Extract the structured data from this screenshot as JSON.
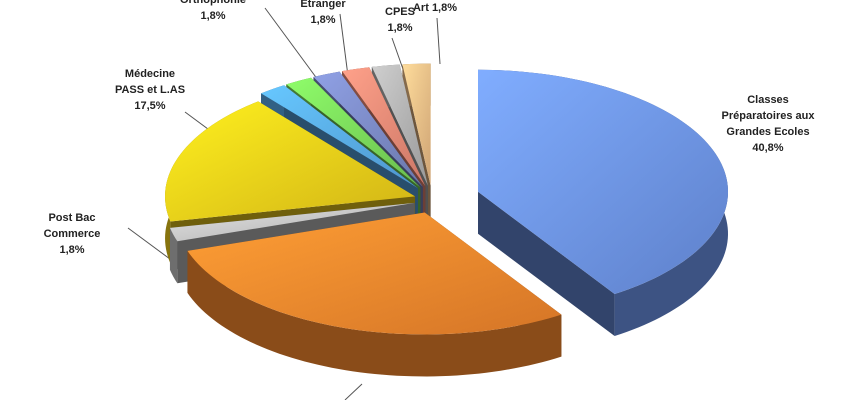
{
  "chart_data": {
    "type": "pie",
    "categories": [
      "Classes Préparatoires aux Grandes Ecoles",
      null,
      "Post Bac Commerce",
      "Médecine PASS et L.AS",
      "Orthophonie",
      "Etranger",
      null,
      "CPES",
      null,
      "Art"
    ],
    "values": [
      40.8,
      29.1,
      1.8,
      17.5,
      1.8,
      1.8,
      1.8,
      1.8,
      1.8,
      1.8
    ],
    "value_labels": [
      "40,8%",
      null,
      "1,8%",
      "17,5%",
      "1,8%",
      "1,8%",
      null,
      "1,8%",
      null,
      "1,8%"
    ],
    "colors": [
      "#6f96ee",
      "#fb8a2e",
      "#c8c8c8",
      "#f6d21a",
      "#5aaef0",
      "#7cdc5c",
      "#7d8cc8",
      "#f08c78",
      "#b4b4b4",
      "#f2c088"
    ]
  }
}
